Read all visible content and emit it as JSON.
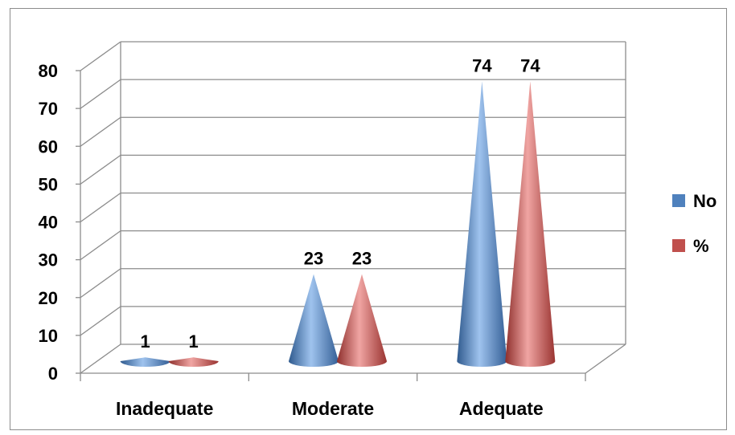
{
  "chart_data": {
    "type": "bar",
    "style": "3d-cone",
    "categories": [
      "Inadequate",
      "Moderate",
      "Adequate"
    ],
    "series": [
      {
        "name": "No",
        "values": [
          1,
          23,
          74
        ],
        "color": "#4f81bd"
      },
      {
        "name": "%",
        "values": [
          1,
          23,
          74
        ],
        "color": "#c0504d"
      }
    ],
    "yticks": [
      "0",
      "10",
      "20",
      "30",
      "40",
      "50",
      "60",
      "70",
      "80"
    ],
    "ylim": [
      0,
      80
    ],
    "grid": true,
    "legend": "right",
    "data_labels": true
  }
}
